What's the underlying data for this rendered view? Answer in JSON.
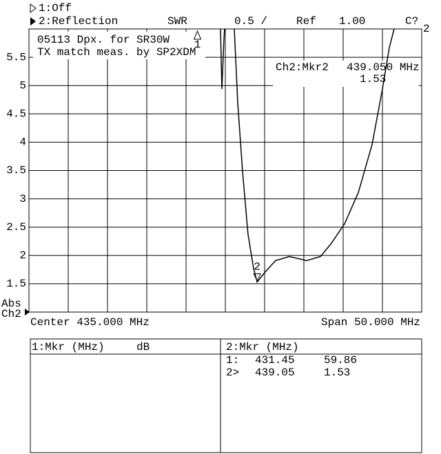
{
  "header": {
    "ch1": "1:Off",
    "ch2": "2:Reflection",
    "format": "SWR",
    "scale": "0.5 /",
    "ref_label": "Ref",
    "ref_value": "1.00",
    "cal": "C?",
    "cal_sub": "2"
  },
  "chart_data": {
    "type": "line",
    "title_lines": [
      "05113 Dpx. for SR30W",
      "TX match meas. by SP2XDM"
    ],
    "readout": {
      "label": "Ch2:Mkr2",
      "frequency": "439.050 MHz",
      "value": "1.53"
    },
    "y_label_lines": [
      "Abs",
      "Ch2"
    ],
    "center": "Center 435.000 MHz",
    "span": "Span 50.000 MHz",
    "xlim": [
      410,
      460
    ],
    "ylim": [
      1,
      6
    ],
    "yticks": [
      1.5,
      2,
      2.5,
      3,
      3.5,
      4,
      4.5,
      5,
      5.5
    ],
    "grid": true,
    "x": [
      434.39,
      434.56,
      434.82,
      434.9,
      null,
      436.14,
      436.58,
      437.19,
      437.89,
      438.6,
      439.05,
      440.09,
      441.4,
      443.16,
      445.35,
      447.11,
      448.42,
      450.18,
      451.93,
      453.68,
      455.0,
      455.88,
      456.49
    ],
    "series": [
      {
        "color": "#000000",
        "values": [
          6,
          4.94,
          5.79,
          6,
          null,
          6,
          4.7,
          3.48,
          2.38,
          1.77,
          1.53,
          1.71,
          1.91,
          1.98,
          1.91,
          1.98,
          2.2,
          2.56,
          3.11,
          3.96,
          4.94,
          5.67,
          6
        ]
      }
    ],
    "markers": [
      {
        "label": "1",
        "x": 431.45
      },
      {
        "label": "2",
        "x": 439.05,
        "y": 1.53
      }
    ]
  },
  "marker_table": {
    "left_header": "1:Mkr (MHz)",
    "left_unit": "dB",
    "right_header": "2:Mkr (MHz)",
    "rows": [
      [
        "1:",
        "431.45",
        "59.86"
      ],
      [
        "2>",
        "439.05",
        "1.53"
      ]
    ]
  }
}
